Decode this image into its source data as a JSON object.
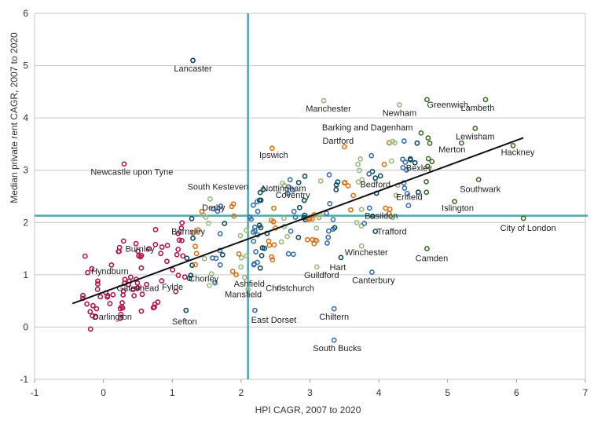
{
  "chart_data": {
    "type": "scatter",
    "title": "",
    "xlabel": "HPI CAGR, 2007 to 2020",
    "ylabel": "Median private rent CAGR, 2007 to 2020",
    "xlim": [
      -1,
      7
    ],
    "ylim": [
      -1,
      6
    ],
    "x_ticks": [
      "-1",
      "0",
      "1",
      "2",
      "3",
      "4",
      "5",
      "6",
      "7"
    ],
    "y_ticks": [
      "-1",
      "0",
      "1",
      "2",
      "3",
      "4",
      "5",
      "6"
    ],
    "grid": "horizontal",
    "reference_lines": {
      "x": 2.1,
      "y": 2.13,
      "color": "#4aa8b0"
    },
    "trend_line": {
      "x": [
        -0.45,
        6.1
      ],
      "y": [
        0.45,
        3.62
      ],
      "color": "#111111"
    },
    "colors": [
      "#b5174b",
      "#3a6fb0",
      "#0c4a5e",
      "#d9731a",
      "#97bb7f",
      "#3c6e26"
    ],
    "labeled_points": [
      {
        "name": "Lancaster",
        "x": 1.3,
        "y": 5.1
      },
      {
        "name": "Manchester",
        "x": 3.2,
        "y": 4.33
      },
      {
        "name": "Newham",
        "x": 4.3,
        "y": 4.25
      },
      {
        "name": "Greenwich",
        "x": 4.7,
        "y": 4.35
      },
      {
        "name": "Lambeth",
        "x": 5.55,
        "y": 4.35
      },
      {
        "name": "Lewisham",
        "x": 5.4,
        "y": 3.8
      },
      {
        "name": "Hackney",
        "x": 5.95,
        "y": 3.47
      },
      {
        "name": "Merton",
        "x": 5.2,
        "y": 3.52
      },
      {
        "name": "Barking and Dagenham",
        "x": 4.2,
        "y": 3.55
      },
      {
        "name": "Dartford",
        "x": 3.5,
        "y": 3.45
      },
      {
        "name": "Ipswich",
        "x": 2.45,
        "y": 3.42
      },
      {
        "name": "Newcastle upon Tyne",
        "x": 0.3,
        "y": 3.12
      },
      {
        "name": "Bexley",
        "x": 4.35,
        "y": 3.05
      },
      {
        "name": "Bedford",
        "x": 3.95,
        "y": 2.85
      },
      {
        "name": "Nottingham",
        "x": 2.6,
        "y": 2.75
      },
      {
        "name": "Southwark",
        "x": 5.45,
        "y": 2.82
      },
      {
        "name": "Enfield",
        "x": 4.25,
        "y": 2.52
      },
      {
        "name": "Coventry",
        "x": 2.75,
        "y": 2.62
      },
      {
        "name": "South Kesteven",
        "x": 1.55,
        "y": 2.45
      },
      {
        "name": "Islington",
        "x": 5.1,
        "y": 2.4
      },
      {
        "name": "Basildon",
        "x": 3.75,
        "y": 2.25
      },
      {
        "name": "Derby",
        "x": 1.6,
        "y": 2.26
      },
      {
        "name": "City of London",
        "x": 6.1,
        "y": 2.08
      },
      {
        "name": "Barnsley",
        "x": 1.3,
        "y": 1.7
      },
      {
        "name": "Trafford",
        "x": 3.95,
        "y": 1.83
      },
      {
        "name": "Burnley",
        "x": 0.85,
        "y": 1.53
      },
      {
        "name": "Winchester",
        "x": 3.75,
        "y": 1.55
      },
      {
        "name": "Camden",
        "x": 4.7,
        "y": 1.5
      },
      {
        "name": "Hart",
        "x": 3.45,
        "y": 1.33
      },
      {
        "name": "Hyndburn",
        "x": 0.55,
        "y": 1.13
      },
      {
        "name": "Guildford",
        "x": 3.1,
        "y": 1.15
      },
      {
        "name": "Canterbury",
        "x": 3.9,
        "y": 1.05
      },
      {
        "name": "Chorley",
        "x": 1.25,
        "y": 0.93
      },
      {
        "name": "Ashfield",
        "x": 2.05,
        "y": 0.95
      },
      {
        "name": "Gateshead",
        "x": 0.5,
        "y": 0.75
      },
      {
        "name": "Christchurch",
        "x": 2.55,
        "y": 0.75
      },
      {
        "name": "Fylde",
        "x": 1.05,
        "y": 0.68
      },
      {
        "name": "Mansfield",
        "x": 2.1,
        "y": 0.72
      },
      {
        "name": "Darlington",
        "x": -0.1,
        "y": 0.35
      },
      {
        "name": "East Dorset",
        "x": 2.2,
        "y": 0.32
      },
      {
        "name": "Sefton",
        "x": 1.2,
        "y": 0.32
      },
      {
        "name": "Chiltern",
        "x": 3.35,
        "y": 0.35
      },
      {
        "name": "South Bucks",
        "x": 3.35,
        "y": -0.25
      }
    ]
  }
}
